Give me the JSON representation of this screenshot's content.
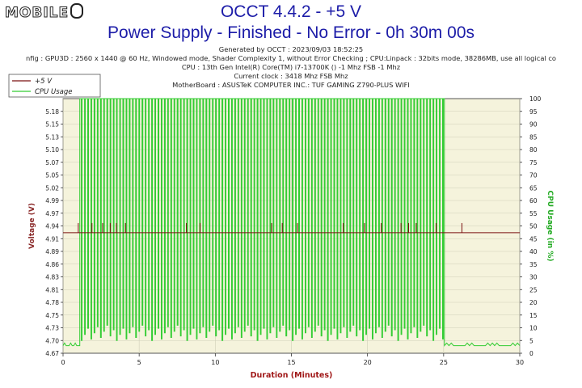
{
  "watermark": "MOBILE",
  "header": {
    "title": "OCCT 4.4.2 - +5 V",
    "subtitle": "Power Supply - Finished - No Error - 0h 30m 00s",
    "info_lines": [
      "Generated by OCCT : 2023/09/03 18:52:25",
      "nfig : GPU3D : 2560 x 1440 @ 60 Hz, Windowed mode, Shader Complexity 1, without Error Checking ; CPU:Linpack : 32bits mode, 38286MB, use all logical co",
      "CPU : 13th Gen Intel(R) Core(TM) i7-13700K () -1 Mhz FSB -1 Mhz",
      "Current clock : 3418 Mhz FSB  Mhz",
      "MotherBoard : ASUSTeK COMPUTER INC.: TUF GAMING Z790-PLUS WIFI"
    ]
  },
  "colors": {
    "voltage": "#7a1010",
    "cpu": "#33cc33",
    "plot_bg": "#f5f3dc",
    "grid": "#cfcfb8",
    "axis_title": "#8b2a2a",
    "right_axis_title": "#22aa22",
    "x_axis_title": "#a01818"
  },
  "chart_data": {
    "type": "line",
    "title": "OCCT 4.4.2 - +5 V",
    "xlabel": "Duration (Minutes)",
    "ylabel": "Voltage (V)",
    "y2label": "CPU Usage (in %)",
    "xlim": [
      0,
      30
    ],
    "ylim": [
      4.67,
      5.2
    ],
    "y2lim": [
      0,
      100
    ],
    "x_ticks": [
      "0",
      "5",
      "10",
      "15",
      "20",
      "25",
      "30"
    ],
    "y_ticks": [
      "4.67",
      "4.70",
      "4.73",
      "4.75",
      "4.78",
      "4.81",
      "4.83",
      "4.86",
      "4.89",
      "4.91",
      "4.94",
      "4.97",
      "4.99",
      "5.02",
      "5.05",
      "5.07",
      "5.10",
      "5.13",
      "5.15",
      "5.18"
    ],
    "y2_ticks": [
      "0",
      "5",
      "10",
      "15",
      "20",
      "25",
      "30",
      "35",
      "40",
      "45",
      "50",
      "55",
      "60",
      "65",
      "70",
      "75",
      "80",
      "85",
      "90",
      "95",
      "100"
    ],
    "legend_position": "top-left",
    "series": [
      {
        "name": "+5 V",
        "axis": "left",
        "baseline": 4.921,
        "x": [
          0,
          1.0,
          1.9,
          2.6,
          3.1,
          3.5,
          4.1,
          8.1,
          9.0,
          13.7,
          14.4,
          15.4,
          18.4,
          19.8,
          20.9,
          22.2,
          22.7,
          23.2,
          24.5,
          26.2,
          30
        ],
        "values": [
          4.921,
          4.941,
          4.941,
          4.941,
          4.941,
          4.941,
          4.941,
          4.941,
          4.941,
          4.941,
          4.941,
          4.941,
          4.941,
          4.941,
          4.941,
          4.941,
          4.941,
          4.941,
          4.941,
          4.941,
          4.921
        ]
      },
      {
        "name": "CPU Usage",
        "axis": "right",
        "idle": 3,
        "load_start": 1.1,
        "load_end": 25.05,
        "load_level": 100,
        "dip_level": 5,
        "dip_period_min": 0.21
      }
    ]
  }
}
